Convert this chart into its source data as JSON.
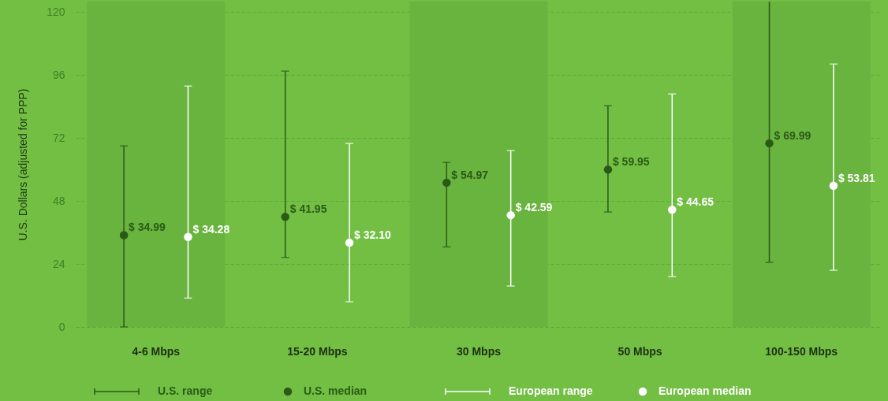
{
  "chart_data": {
    "type": "scatter",
    "ylabel": "U.S. Dollars (adjusted for PPP)",
    "categories": [
      "4-6 Mbps",
      "15-20 Mbps",
      "30 Mbps",
      "50 Mbps",
      "100-150 Mbps"
    ],
    "series": [
      {
        "name": "U.S. median",
        "color": "#2b5a17",
        "values": [
          34.99,
          41.95,
          54.97,
          59.95,
          69.99
        ],
        "errors": [
          [
            0,
            69
          ],
          [
            26.5,
            97.5
          ],
          [
            30.5,
            62.7
          ],
          [
            43.8,
            84.3
          ],
          [
            24.6,
            124
          ]
        ],
        "value_labels": [
          "$ 34.99",
          "$ 41.95",
          "$ 54.97",
          "$ 59.95",
          "$ 69.99"
        ]
      },
      {
        "name": "European median",
        "color": "#ffffff",
        "values": [
          34.28,
          32.1,
          42.59,
          44.65,
          53.81
        ],
        "errors": [
          [
            11,
            91.8
          ],
          [
            9.6,
            69.9
          ],
          [
            15.6,
            67.2
          ],
          [
            19.2,
            88.8
          ],
          [
            21.6,
            100.2
          ]
        ],
        "value_labels": [
          "$ 34.28",
          "$ 32.10",
          "$ 42.59",
          "$ 44.65",
          "$ 53.81"
        ]
      }
    ],
    "annotations": [
      "U.S. range",
      "European range"
    ],
    "bands": [
      {
        "axis": "x",
        "from": "4-6 Mbps",
        "to": "4-6 Mbps",
        "color": "#69b33f"
      },
      {
        "axis": "x",
        "from": "30 Mbps",
        "to": "30 Mbps",
        "color": "#69b33f"
      },
      {
        "axis": "x",
        "from": "100-150 Mbps",
        "to": "100-150 Mbps",
        "color": "#69b33f"
      }
    ],
    "ylim": [
      0,
      124
    ],
    "yticks": [
      0,
      24,
      48,
      72,
      96,
      120
    ],
    "grid": "y",
    "legend": "bottom",
    "marker": "circle"
  }
}
